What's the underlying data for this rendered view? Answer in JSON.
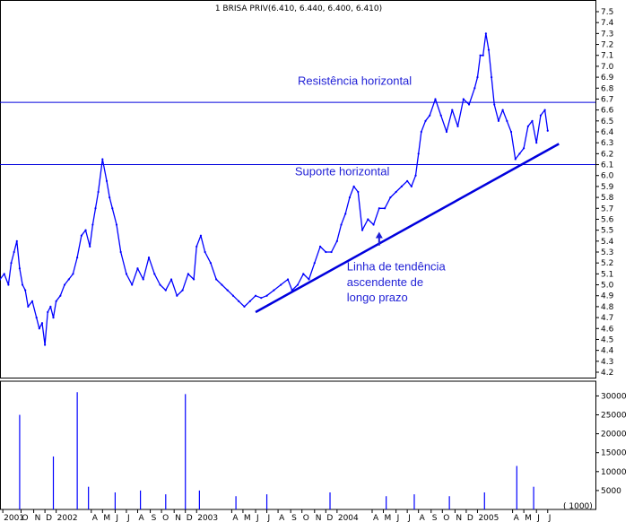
{
  "chart_data": {
    "type": "line",
    "title": "1 BRISA PRIV(6.410, 6.440, 6.400, 6.410)",
    "colors": {
      "price": "#0000ff",
      "annotation": "#1f1fd6",
      "trendline": "#0000dd",
      "volume": "#0000ff"
    },
    "price_axis": {
      "ylim": [
        4.2,
        7.5
      ],
      "ticks": [
        "7.5",
        "7.4",
        "7.3",
        "7.2",
        "7.1",
        "7.0",
        "6.9",
        "6.8",
        "6.7",
        "6.6",
        "6.5",
        "6.4",
        "6.3",
        "6.2",
        "6.1",
        "6.0",
        "5.9",
        "5.8",
        "5.7",
        "5.6",
        "5.5",
        "5.4",
        "5.3",
        "5.2",
        "5.1",
        "5.0",
        "4.9",
        "4.8",
        "4.7",
        "4.6",
        "4.5",
        "4.4",
        "4.3",
        "4.2"
      ]
    },
    "volume_axis": {
      "ylim": [
        0,
        32000
      ],
      "ticks": [
        "30000",
        "25000",
        "20000",
        "15000",
        "10000",
        "5000"
      ],
      "unit_label": "( 1000)"
    },
    "x_axis": {
      "xlim": [
        2001.6,
        2005.84
      ],
      "labels": [
        {
          "t": 2001.62,
          "text": "2001"
        },
        {
          "t": 2001.75,
          "text": "O"
        },
        {
          "t": 2001.84,
          "text": "N"
        },
        {
          "t": 2001.92,
          "text": "D"
        },
        {
          "t": 2002.0,
          "text": "2002"
        },
        {
          "t": 2002.25,
          "text": "A"
        },
        {
          "t": 2002.33,
          "text": "M"
        },
        {
          "t": 2002.42,
          "text": "J"
        },
        {
          "t": 2002.5,
          "text": "J"
        },
        {
          "t": 2002.58,
          "text": "A"
        },
        {
          "t": 2002.67,
          "text": "S"
        },
        {
          "t": 2002.75,
          "text": "O"
        },
        {
          "t": 2002.84,
          "text": "N"
        },
        {
          "t": 2002.92,
          "text": "D"
        },
        {
          "t": 2003.0,
          "text": "2003"
        },
        {
          "t": 2003.25,
          "text": "A"
        },
        {
          "t": 2003.33,
          "text": "M"
        },
        {
          "t": 2003.42,
          "text": "J"
        },
        {
          "t": 2003.5,
          "text": "J"
        },
        {
          "t": 2003.58,
          "text": "A"
        },
        {
          "t": 2003.67,
          "text": "S"
        },
        {
          "t": 2003.75,
          "text": "O"
        },
        {
          "t": 2003.84,
          "text": "N"
        },
        {
          "t": 2003.92,
          "text": "D"
        },
        {
          "t": 2004.0,
          "text": "2004"
        },
        {
          "t": 2004.25,
          "text": "A"
        },
        {
          "t": 2004.33,
          "text": "M"
        },
        {
          "t": 2004.42,
          "text": "J"
        },
        {
          "t": 2004.5,
          "text": "J"
        },
        {
          "t": 2004.58,
          "text": "A"
        },
        {
          "t": 2004.67,
          "text": "S"
        },
        {
          "t": 2004.75,
          "text": "O"
        },
        {
          "t": 2004.84,
          "text": "N"
        },
        {
          "t": 2004.92,
          "text": "D"
        },
        {
          "t": 2005.0,
          "text": "2005"
        },
        {
          "t": 2005.25,
          "text": "A"
        },
        {
          "t": 2005.33,
          "text": "M"
        },
        {
          "t": 2005.42,
          "text": "J"
        },
        {
          "t": 2005.5,
          "text": "J"
        }
      ]
    },
    "price_series": {
      "x": [
        2001.6,
        2001.63,
        2001.66,
        2001.68,
        2001.7,
        2001.72,
        2001.74,
        2001.76,
        2001.78,
        2001.8,
        2001.83,
        2001.86,
        2001.88,
        2001.9,
        2001.92,
        2001.94,
        2001.96,
        2001.98,
        2002.0,
        2002.03,
        2002.06,
        2002.09,
        2002.12,
        2002.15,
        2002.18,
        2002.21,
        2002.24,
        2002.26,
        2002.28,
        2002.3,
        2002.33,
        2002.36,
        2002.38,
        2002.4,
        2002.43,
        2002.46,
        2002.5,
        2002.54,
        2002.58,
        2002.62,
        2002.66,
        2002.7,
        2002.74,
        2002.78,
        2002.82,
        2002.86,
        2002.9,
        2002.94,
        2002.98,
        2003.0,
        2003.03,
        2003.06,
        2003.1,
        2003.14,
        2003.18,
        2003.22,
        2003.26,
        2003.3,
        2003.34,
        2003.38,
        2003.42,
        2003.46,
        2003.5,
        2003.55,
        2003.6,
        2003.65,
        2003.68,
        2003.72,
        2003.76,
        2003.8,
        2003.84,
        2003.88,
        2003.92,
        2003.96,
        2004.0,
        2004.03,
        2004.06,
        2004.09,
        2004.12,
        2004.15,
        2004.18,
        2004.22,
        2004.26,
        2004.3,
        2004.34,
        2004.38,
        2004.42,
        2004.46,
        2004.5,
        2004.53,
        2004.56,
        2004.58,
        2004.6,
        2004.63,
        2004.66,
        2004.7,
        2004.74,
        2004.78,
        2004.82,
        2004.86,
        2004.9,
        2004.94,
        2004.98,
        2005.0,
        2005.02,
        2005.04,
        2005.06,
        2005.08,
        2005.1,
        2005.12,
        2005.15,
        2005.18,
        2005.21,
        2005.24,
        2005.27,
        2005.3,
        2005.33,
        2005.36,
        2005.39,
        2005.42,
        2005.45,
        2005.48,
        2005.5
      ],
      "y": [
        5.05,
        5.1,
        5.0,
        5.2,
        5.3,
        5.4,
        5.15,
        5.0,
        4.95,
        4.8,
        4.85,
        4.7,
        4.6,
        4.65,
        4.45,
        4.75,
        4.8,
        4.7,
        4.85,
        4.9,
        5.0,
        5.05,
        5.1,
        5.25,
        5.45,
        5.5,
        5.35,
        5.55,
        5.7,
        5.85,
        6.15,
        5.95,
        5.8,
        5.7,
        5.55,
        5.3,
        5.1,
        5.0,
        5.15,
        5.05,
        5.25,
        5.1,
        5.0,
        4.95,
        5.05,
        4.9,
        4.95,
        5.1,
        5.05,
        5.35,
        5.45,
        5.3,
        5.2,
        5.05,
        5.0,
        4.95,
        4.9,
        4.85,
        4.8,
        4.85,
        4.9,
        4.88,
        4.9,
        4.95,
        5.0,
        5.05,
        4.95,
        5.0,
        5.1,
        5.05,
        5.2,
        5.35,
        5.3,
        5.3,
        5.4,
        5.55,
        5.65,
        5.8,
        5.9,
        5.85,
        5.5,
        5.6,
        5.55,
        5.7,
        5.7,
        5.8,
        5.85,
        5.9,
        5.95,
        5.9,
        6.0,
        6.2,
        6.4,
        6.5,
        6.55,
        6.7,
        6.55,
        6.4,
        6.6,
        6.45,
        6.7,
        6.65,
        6.8,
        6.9,
        7.1,
        7.1,
        7.3,
        7.15,
        6.9,
        6.65,
        6.5,
        6.6,
        6.5,
        6.4,
        6.15,
        6.2,
        6.25,
        6.45,
        6.5,
        6.3,
        6.55,
        6.6,
        6.41
      ]
    },
    "volume_series": {
      "x": [
        2001.74,
        2001.98,
        2002.15,
        2002.23,
        2002.42,
        2002.6,
        2002.78,
        2002.92,
        2003.02,
        2003.28,
        2003.5,
        2003.95,
        2004.35,
        2004.55,
        2004.8,
        2005.05,
        2005.28,
        2005.4
      ],
      "y": [
        25000,
        14000,
        31000,
        6000,
        4500,
        5000,
        4000,
        30500,
        5000,
        3500,
        4000,
        4500,
        3500,
        4000,
        3500,
        4500,
        11500,
        6000
      ]
    },
    "levels": [
      {
        "name": "Resistência horizontal",
        "value": 6.67
      },
      {
        "name": "Suporte horizontal",
        "value": 6.1
      }
    ],
    "trendline": {
      "x": [
        2003.42,
        2005.58
      ],
      "y": [
        4.75,
        6.29
      ]
    },
    "annotations": [
      {
        "text": "Resistência horizontal",
        "t": 2003.72,
        "y": 6.83
      },
      {
        "text": "Suporte horizontal",
        "t": 2003.7,
        "y": 6.0
      },
      {
        "text": "Linha de tendência",
        "t": 2004.07,
        "y": 5.13
      },
      {
        "text": "ascendente de",
        "t": 2004.07,
        "y": 4.99
      },
      {
        "text": "longo prazo",
        "t": 2004.07,
        "y": 4.85
      }
    ]
  }
}
